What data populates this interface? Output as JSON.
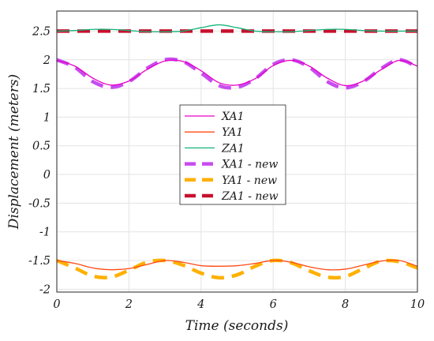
{
  "chart_data": {
    "type": "line",
    "xlabel": "Time (seconds)",
    "ylabel": "Displacement (meters)",
    "xlim": [
      0,
      10
    ],
    "ylim": [
      -2.05,
      2.85
    ],
    "xticks": [
      0,
      2,
      4,
      6,
      8,
      10
    ],
    "yticks": [
      -2,
      -1.5,
      -1,
      -0.5,
      0,
      0.5,
      1,
      1.5,
      2,
      2.5
    ],
    "grid": true,
    "legend_position": "center",
    "series": [
      {
        "name": "XA1",
        "color": "#e600c8",
        "style": "solid",
        "x": [
          0,
          0.5,
          1,
          1.5,
          2,
          2.5,
          3,
          3.5,
          4,
          4.5,
          5,
          5.5,
          6,
          6.5,
          7,
          7.5,
          8,
          8.5,
          9,
          9.5,
          10
        ],
        "y": [
          1.99,
          1.89,
          1.68,
          1.56,
          1.63,
          1.83,
          1.98,
          1.97,
          1.81,
          1.6,
          1.56,
          1.67,
          1.9,
          1.99,
          1.89,
          1.68,
          1.55,
          1.63,
          1.83,
          1.99,
          1.89
        ]
      },
      {
        "name": "YA1",
        "color": "#ff4a14",
        "style": "solid",
        "x": [
          0,
          0.5,
          1,
          1.5,
          2,
          2.5,
          3,
          3.5,
          4,
          4.5,
          5,
          5.5,
          6,
          6.5,
          7,
          7.5,
          8,
          8.5,
          9,
          9.5,
          10
        ],
        "y": [
          -1.5,
          -1.55,
          -1.63,
          -1.66,
          -1.64,
          -1.57,
          -1.5,
          -1.53,
          -1.59,
          -1.6,
          -1.59,
          -1.55,
          -1.5,
          -1.53,
          -1.61,
          -1.66,
          -1.65,
          -1.58,
          -1.51,
          -1.5,
          -1.6
        ]
      },
      {
        "name": "ZA1",
        "color": "#14b478",
        "style": "solid",
        "x": [
          0,
          0.5,
          1,
          1.5,
          2,
          2.5,
          3,
          3.5,
          4,
          4.5,
          5,
          5.5,
          6,
          6.5,
          7,
          7.5,
          8,
          8.5,
          9,
          9.5,
          10
        ],
        "y": [
          2.5,
          2.51,
          2.53,
          2.53,
          2.51,
          2.49,
          2.49,
          2.5,
          2.56,
          2.61,
          2.56,
          2.5,
          2.49,
          2.49,
          2.51,
          2.53,
          2.53,
          2.51,
          2.5,
          2.5,
          2.5
        ]
      },
      {
        "name": "XA1 - new",
        "color": "#c84cf0",
        "style": "dashed",
        "x": [
          0,
          0.5,
          1,
          1.5,
          2,
          2.5,
          3,
          3.5,
          4,
          4.5,
          5,
          5.5,
          6,
          6.5,
          7,
          7.5,
          8,
          8.5,
          9,
          9.5,
          10
        ],
        "y": [
          2.0,
          1.87,
          1.62,
          1.52,
          1.62,
          1.85,
          2.0,
          1.97,
          1.77,
          1.55,
          1.52,
          1.67,
          1.92,
          2.0,
          1.87,
          1.62,
          1.51,
          1.62,
          1.85,
          2.0,
          1.87
        ]
      },
      {
        "name": "YA1 - new",
        "color": "#ffb000",
        "style": "dashed",
        "x": [
          0,
          0.5,
          1,
          1.5,
          2,
          2.5,
          3,
          3.5,
          4,
          4.5,
          5,
          5.5,
          6,
          6.5,
          7,
          7.5,
          8,
          8.5,
          9,
          9.5,
          10
        ],
        "y": [
          -1.5,
          -1.63,
          -1.77,
          -1.79,
          -1.67,
          -1.53,
          -1.5,
          -1.58,
          -1.72,
          -1.8,
          -1.75,
          -1.6,
          -1.5,
          -1.54,
          -1.68,
          -1.79,
          -1.78,
          -1.64,
          -1.51,
          -1.52,
          -1.63
        ]
      },
      {
        "name": "ZA1 - new",
        "color": "#c8102e",
        "style": "dashed",
        "x": [
          0,
          10
        ],
        "y": [
          2.5,
          2.5
        ]
      }
    ]
  }
}
